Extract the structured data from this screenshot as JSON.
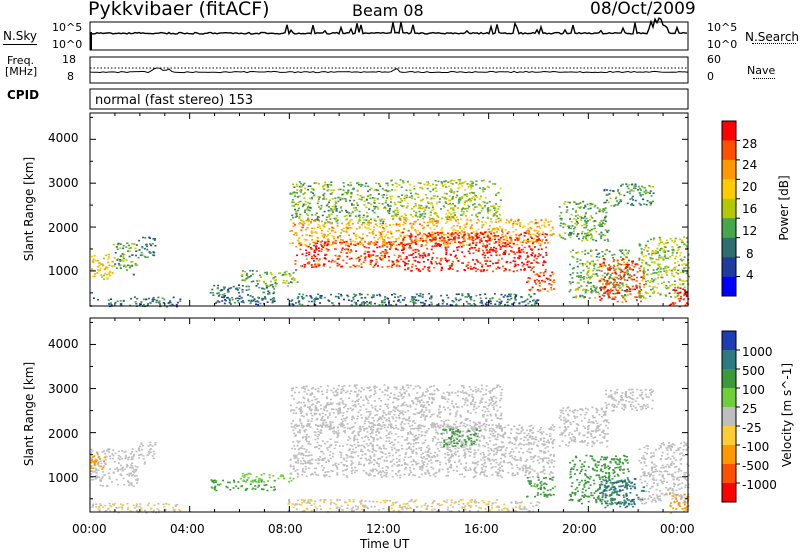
{
  "header": {
    "site": "Pykkvibaer (fitACF)",
    "beam": "Beam 08",
    "date": "08/Oct/2009"
  },
  "strip_labels": {
    "nsky": "N.Sky",
    "nsearch": "N.Search",
    "freq_line1": "Freq.",
    "freq_line2": "[MHz]",
    "nave": "Nave",
    "cpid": "CPID",
    "cpid_value": "normal (fast stereo) 153"
  },
  "strip_ticks": {
    "noise_left": [
      "10^5",
      "10^0"
    ],
    "noise_right": [
      "10^5",
      "10^0"
    ],
    "freq_left": [
      "18",
      "8"
    ],
    "nave_right": [
      "60",
      "0"
    ]
  },
  "chart_data": [
    {
      "type": "heatmap",
      "panel": "power",
      "ylabel": "Slant Range [km]",
      "yticks": [
        1000,
        2000,
        3000,
        4000
      ],
      "ylim": [
        200,
        4600
      ],
      "xlim": [
        0,
        24
      ],
      "colorbar": {
        "label": "Power [dB]",
        "ticks": [
          "28",
          "24",
          "20",
          "16",
          "12",
          "8",
          "4"
        ],
        "colors": [
          "#ff0000",
          "#ff5000",
          "#ff9900",
          "#ffcc00",
          "#b4c800",
          "#46a64a",
          "#2e6e6e",
          "#1e3c9e",
          "#0000ff"
        ]
      },
      "regions": [
        {
          "t0": 0.0,
          "t1": 3.6,
          "r0": 200,
          "r1": 420,
          "value": 8
        },
        {
          "t0": 0.0,
          "t1": 0.9,
          "r0": 800,
          "r1": 1400,
          "value": 18
        },
        {
          "t0": 0.9,
          "t1": 1.9,
          "r0": 900,
          "r1": 1650,
          "value": 12
        },
        {
          "t0": 1.9,
          "t1": 2.6,
          "r0": 1300,
          "r1": 1800,
          "value": 8
        },
        {
          "t0": 4.8,
          "t1": 7.4,
          "r0": 250,
          "r1": 700,
          "value": 8
        },
        {
          "t0": 6.0,
          "t1": 8.3,
          "r0": 650,
          "r1": 1050,
          "value": 12
        },
        {
          "t0": 8.0,
          "t1": 12.0,
          "r0": 2100,
          "r1": 3050,
          "value": 12
        },
        {
          "t0": 12.0,
          "t1": 16.5,
          "r0": 2200,
          "r1": 3100,
          "value": 14
        },
        {
          "t0": 8.0,
          "t1": 18.6,
          "r0": 1600,
          "r1": 2200,
          "value": 20
        },
        {
          "t0": 8.2,
          "t1": 12.5,
          "r0": 1100,
          "r1": 1700,
          "value": 26
        },
        {
          "t0": 12.5,
          "t1": 18.3,
          "r0": 1000,
          "r1": 1900,
          "value": 28
        },
        {
          "t0": 7.9,
          "t1": 18.0,
          "r0": 220,
          "r1": 500,
          "value": 8
        },
        {
          "t0": 17.5,
          "t1": 18.7,
          "r0": 550,
          "r1": 1000,
          "value": 26
        },
        {
          "t0": 18.8,
          "t1": 20.8,
          "r0": 1700,
          "r1": 2600,
          "value": 12
        },
        {
          "t0": 20.6,
          "t1": 22.6,
          "r0": 2500,
          "r1": 3000,
          "value": 10
        },
        {
          "t0": 19.2,
          "t1": 21.6,
          "r0": 400,
          "r1": 1500,
          "value": 12
        },
        {
          "t0": 20.4,
          "t1": 22.2,
          "r0": 300,
          "r1": 1300,
          "value": 26
        },
        {
          "t0": 22.0,
          "t1": 24.0,
          "r0": 400,
          "r1": 1800,
          "value": 14
        },
        {
          "t0": 23.2,
          "t1": 24.0,
          "r0": 200,
          "r1": 650,
          "value": 28
        }
      ]
    },
    {
      "type": "heatmap",
      "panel": "velocity",
      "ylabel": "Slant Range [km]",
      "xlabel": "Time UT",
      "yticks": [
        1000,
        2000,
        3000,
        4000
      ],
      "ylim": [
        200,
        4600
      ],
      "xlim": [
        0,
        24
      ],
      "xticks": [
        "00:00",
        "04:00",
        "08:00",
        "12:00",
        "16:00",
        "20:00",
        "00:00"
      ],
      "colorbar": {
        "label": "Velocity [m s^-1]",
        "ticks": [
          "1000",
          "500",
          "100",
          "25",
          "-25",
          "-100",
          "-500",
          "-1000"
        ],
        "colors": [
          "#1e3cb4",
          "#2e7a82",
          "#3c9a3c",
          "#6ece3c",
          "#bebebe",
          "#ffcc33",
          "#ff9900",
          "#ff5000",
          "#ff0000"
        ]
      },
      "regions": [
        {
          "t0": 0.0,
          "t1": 3.6,
          "r0": 200,
          "r1": 420,
          "value": -20
        },
        {
          "t0": 0.0,
          "t1": 1.9,
          "r0": 800,
          "r1": 1650,
          "value": 0
        },
        {
          "t0": 0.0,
          "t1": 0.6,
          "r0": 1100,
          "r1": 1550,
          "value": -300
        },
        {
          "t0": 1.9,
          "t1": 2.6,
          "r0": 1300,
          "r1": 1800,
          "value": 0
        },
        {
          "t0": 4.8,
          "t1": 7.4,
          "r0": 700,
          "r1": 950,
          "value": 150
        },
        {
          "t0": 6.0,
          "t1": 8.3,
          "r0": 900,
          "r1": 1100,
          "value": 60
        },
        {
          "t0": 8.0,
          "t1": 16.5,
          "r0": 2100,
          "r1": 3100,
          "value": 0
        },
        {
          "t0": 8.0,
          "t1": 18.6,
          "r0": 1000,
          "r1": 2200,
          "value": 0
        },
        {
          "t0": 14.0,
          "t1": 15.6,
          "r0": 1700,
          "r1": 2100,
          "value": 200
        },
        {
          "t0": 7.9,
          "t1": 18.0,
          "r0": 220,
          "r1": 500,
          "value": -20
        },
        {
          "t0": 17.5,
          "t1": 18.7,
          "r0": 550,
          "r1": 1000,
          "value": 150
        },
        {
          "t0": 18.8,
          "t1": 20.8,
          "r0": 1700,
          "r1": 2600,
          "value": 0
        },
        {
          "t0": 20.6,
          "t1": 22.6,
          "r0": 2500,
          "r1": 3000,
          "value": 0
        },
        {
          "t0": 19.2,
          "t1": 21.6,
          "r0": 400,
          "r1": 1500,
          "value": 300
        },
        {
          "t0": 20.4,
          "t1": 22.2,
          "r0": 300,
          "r1": 1000,
          "value": 800
        },
        {
          "t0": 22.0,
          "t1": 24.0,
          "r0": 400,
          "r1": 1800,
          "value": 0
        },
        {
          "t0": 23.2,
          "t1": 24.0,
          "r0": 200,
          "r1": 650,
          "value": -200
        }
      ]
    }
  ]
}
